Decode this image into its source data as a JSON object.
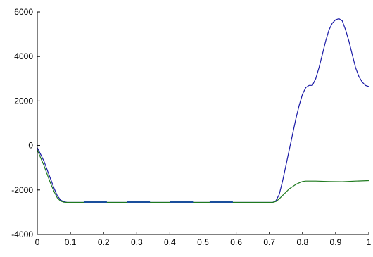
{
  "chart_data": {
    "type": "line",
    "title": "",
    "xlabel": "",
    "ylabel": "",
    "xlim": [
      0,
      1
    ],
    "ylim": [
      -4000,
      6000
    ],
    "grid": false,
    "legend": "none",
    "x_ticks": [
      "0",
      "0.1",
      "0.2",
      "0.3",
      "0.4",
      "0.5",
      "0.6",
      "0.7",
      "0.8",
      "0.9",
      "1"
    ],
    "y_ticks": [
      "-4000",
      "-2000",
      "0",
      "2000",
      "4000",
      "6000"
    ],
    "series": [
      {
        "color": "#1a1aa6",
        "points": [
          [
            0,
            -100
          ],
          [
            0.01,
            -400
          ],
          [
            0.02,
            -700
          ],
          [
            0.03,
            -1100
          ],
          [
            0.04,
            -1500
          ],
          [
            0.05,
            -1900
          ],
          [
            0.06,
            -2250
          ],
          [
            0.07,
            -2450
          ],
          [
            0.08,
            -2530
          ],
          [
            0.09,
            -2560
          ],
          [
            0.1,
            -2560
          ],
          [
            0.3,
            -2560
          ],
          [
            0.5,
            -2560
          ],
          [
            0.71,
            -2560
          ],
          [
            0.72,
            -2480
          ],
          [
            0.73,
            -2200
          ],
          [
            0.74,
            -1600
          ],
          [
            0.75,
            -900
          ],
          [
            0.76,
            -200
          ],
          [
            0.77,
            500
          ],
          [
            0.78,
            1200
          ],
          [
            0.79,
            1800
          ],
          [
            0.8,
            2300
          ],
          [
            0.81,
            2600
          ],
          [
            0.82,
            2700
          ],
          [
            0.83,
            2700
          ],
          [
            0.84,
            3000
          ],
          [
            0.85,
            3500
          ],
          [
            0.86,
            4100
          ],
          [
            0.87,
            4700
          ],
          [
            0.88,
            5200
          ],
          [
            0.89,
            5500
          ],
          [
            0.9,
            5650
          ],
          [
            0.91,
            5700
          ],
          [
            0.92,
            5600
          ],
          [
            0.93,
            5200
          ],
          [
            0.94,
            4700
          ],
          [
            0.95,
            4100
          ],
          [
            0.96,
            3500
          ],
          [
            0.97,
            3100
          ],
          [
            0.98,
            2850
          ],
          [
            0.99,
            2700
          ],
          [
            1.0,
            2650
          ]
        ]
      },
      {
        "color": "#1f7a1f",
        "points": [
          [
            0,
            -200
          ],
          [
            0.01,
            -550
          ],
          [
            0.02,
            -900
          ],
          [
            0.03,
            -1300
          ],
          [
            0.04,
            -1700
          ],
          [
            0.05,
            -2050
          ],
          [
            0.06,
            -2350
          ],
          [
            0.07,
            -2500
          ],
          [
            0.08,
            -2550
          ],
          [
            0.09,
            -2560
          ],
          [
            0.1,
            -2560
          ],
          [
            0.3,
            -2560
          ],
          [
            0.5,
            -2560
          ],
          [
            0.71,
            -2560
          ],
          [
            0.72,
            -2520
          ],
          [
            0.73,
            -2400
          ],
          [
            0.74,
            -2250
          ],
          [
            0.75,
            -2100
          ],
          [
            0.76,
            -1950
          ],
          [
            0.77,
            -1850
          ],
          [
            0.78,
            -1750
          ],
          [
            0.79,
            -1680
          ],
          [
            0.8,
            -1620
          ],
          [
            0.81,
            -1600
          ],
          [
            0.84,
            -1600
          ],
          [
            0.88,
            -1620
          ],
          [
            0.92,
            -1630
          ],
          [
            0.96,
            -1600
          ],
          [
            1.0,
            -1580
          ]
        ]
      }
    ],
    "highlight_segments": {
      "color": "#1a4f9c",
      "y": -2560,
      "ranges": [
        [
          0.14,
          0.21
        ],
        [
          0.27,
          0.34
        ],
        [
          0.4,
          0.47
        ],
        [
          0.52,
          0.59
        ]
      ]
    }
  }
}
